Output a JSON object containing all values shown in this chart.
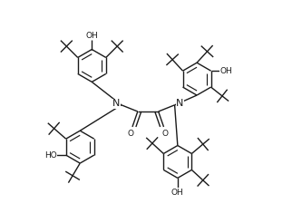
{
  "bg_color": "#ffffff",
  "line_color": "#1a1a1a",
  "line_width": 1.0,
  "font_size": 6.5,
  "fig_width": 3.33,
  "fig_height": 2.46,
  "dpi": 100,
  "xlim": [
    0,
    10
  ],
  "ylim": [
    0,
    7.5
  ]
}
